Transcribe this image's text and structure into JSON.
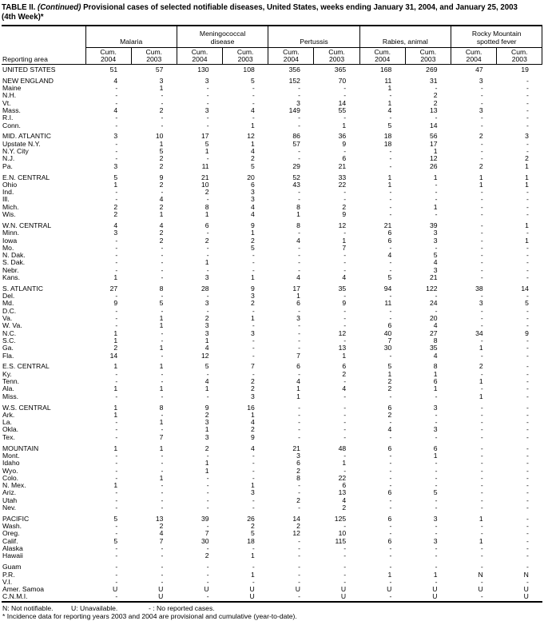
{
  "title": {
    "prefix": "TABLE II. ",
    "continued": "(Continued)",
    "line1_rest": " Provisional cases of selected notifiable diseases, United States, weeks ending January 31, 2004, and January 25, 2003",
    "line2": "(4th Week)*"
  },
  "header": {
    "reporting_area": "Reporting area",
    "cum_label": "Cum.",
    "years": [
      "2004",
      "2003"
    ],
    "groups": [
      {
        "id": "malaria",
        "lines": [
          "Malaria"
        ]
      },
      {
        "id": "meningococcal-disease",
        "lines": [
          "Meningococcal",
          "disease"
        ]
      },
      {
        "id": "pertussis",
        "lines": [
          "Pertussis"
        ]
      },
      {
        "id": "rabies-animal",
        "lines": [
          "Rabies, animal"
        ]
      },
      {
        "id": "rocky-mountain-spotted-fever",
        "lines": [
          "Rocky Mountain",
          "spotted fever"
        ]
      }
    ]
  },
  "sections": [
    {
      "rows": [
        {
          "area": "UNITED STATES",
          "values": [
            "51",
            "57",
            "130",
            "108",
            "356",
            "365",
            "168",
            "269",
            "47",
            "19"
          ]
        }
      ]
    },
    {
      "rows": [
        {
          "area": "NEW ENGLAND",
          "values": [
            "4",
            "3",
            "3",
            "5",
            "152",
            "70",
            "11",
            "31",
            "3",
            "-"
          ]
        },
        {
          "area": "Maine",
          "values": [
            "-",
            "1",
            "-",
            "-",
            "-",
            "-",
            "1",
            "-",
            "-",
            "-"
          ]
        },
        {
          "area": "N.H.",
          "values": [
            "-",
            "-",
            "-",
            "-",
            "-",
            "-",
            "-",
            "2",
            "-",
            "-"
          ]
        },
        {
          "area": "Vt.",
          "values": [
            "-",
            "-",
            "-",
            "-",
            "3",
            "14",
            "1",
            "2",
            "-",
            "-"
          ]
        },
        {
          "area": "Mass.",
          "values": [
            "4",
            "2",
            "3",
            "4",
            "149",
            "55",
            "4",
            "13",
            "3",
            "-"
          ]
        },
        {
          "area": "R.I.",
          "values": [
            "-",
            "-",
            "-",
            "-",
            "-",
            "-",
            "-",
            "-",
            "-",
            "-"
          ]
        },
        {
          "area": "Conn.",
          "values": [
            "-",
            "-",
            "-",
            "1",
            "-",
            "1",
            "5",
            "14",
            "-",
            "-"
          ]
        }
      ]
    },
    {
      "rows": [
        {
          "area": "MID. ATLANTIC",
          "values": [
            "3",
            "10",
            "17",
            "12",
            "86",
            "36",
            "18",
            "56",
            "2",
            "3"
          ]
        },
        {
          "area": "Upstate N.Y.",
          "values": [
            "-",
            "1",
            "5",
            "1",
            "57",
            "9",
            "18",
            "17",
            "-",
            "-"
          ]
        },
        {
          "area": "N.Y. City",
          "values": [
            "-",
            "5",
            "1",
            "4",
            "-",
            "-",
            "-",
            "1",
            "-",
            "-"
          ]
        },
        {
          "area": "N.J.",
          "values": [
            "-",
            "2",
            "-",
            "2",
            "-",
            "6",
            "-",
            "12",
            "-",
            "2"
          ]
        },
        {
          "area": "Pa.",
          "values": [
            "3",
            "2",
            "11",
            "5",
            "29",
            "21",
            "-",
            "26",
            "2",
            "1"
          ]
        }
      ]
    },
    {
      "rows": [
        {
          "area": "E.N. CENTRAL",
          "values": [
            "5",
            "9",
            "21",
            "20",
            "52",
            "33",
            "1",
            "1",
            "1",
            "1"
          ]
        },
        {
          "area": "Ohio",
          "values": [
            "1",
            "2",
            "10",
            "6",
            "43",
            "22",
            "1",
            "-",
            "1",
            "1"
          ]
        },
        {
          "area": "Ind.",
          "values": [
            "-",
            "-",
            "2",
            "3",
            "-",
            "-",
            "-",
            "-",
            "-",
            "-"
          ]
        },
        {
          "area": "Ill.",
          "values": [
            "-",
            "4",
            "-",
            "3",
            "-",
            "-",
            "-",
            "-",
            "-",
            "-"
          ]
        },
        {
          "area": "Mich.",
          "values": [
            "2",
            "2",
            "8",
            "4",
            "8",
            "2",
            "-",
            "1",
            "-",
            "-"
          ]
        },
        {
          "area": "Wis.",
          "values": [
            "2",
            "1",
            "1",
            "4",
            "1",
            "9",
            "-",
            "-",
            "-",
            "-"
          ]
        }
      ]
    },
    {
      "rows": [
        {
          "area": "W.N. CENTRAL",
          "values": [
            "4",
            "4",
            "6",
            "9",
            "8",
            "12",
            "21",
            "39",
            "-",
            "1"
          ]
        },
        {
          "area": "Minn.",
          "values": [
            "3",
            "2",
            "-",
            "1",
            "-",
            "-",
            "6",
            "3",
            "-",
            "-"
          ]
        },
        {
          "area": "Iowa",
          "values": [
            "-",
            "2",
            "2",
            "2",
            "4",
            "1",
            "6",
            "3",
            "-",
            "1"
          ]
        },
        {
          "area": "Mo.",
          "values": [
            "-",
            "-",
            "-",
            "5",
            "-",
            "7",
            "-",
            "-",
            "-",
            "-"
          ]
        },
        {
          "area": "N. Dak.",
          "values": [
            "-",
            "-",
            "-",
            "-",
            "-",
            "-",
            "4",
            "5",
            "-",
            "-"
          ]
        },
        {
          "area": "S. Dak.",
          "values": [
            "-",
            "-",
            "1",
            "-",
            "-",
            "-",
            "-",
            "4",
            "-",
            "-"
          ]
        },
        {
          "area": "Nebr.",
          "values": [
            "-",
            "-",
            "-",
            "-",
            "-",
            "-",
            "-",
            "3",
            "-",
            "-"
          ]
        },
        {
          "area": "Kans.",
          "values": [
            "1",
            "-",
            "3",
            "1",
            "4",
            "4",
            "5",
            "21",
            "-",
            "-"
          ]
        }
      ]
    },
    {
      "rows": [
        {
          "area": "S. ATLANTIC",
          "values": [
            "27",
            "8",
            "28",
            "9",
            "17",
            "35",
            "94",
            "122",
            "38",
            "14"
          ]
        },
        {
          "area": "Del.",
          "values": [
            "-",
            "-",
            "-",
            "3",
            "1",
            "-",
            "-",
            "-",
            "-",
            "-"
          ]
        },
        {
          "area": "Md.",
          "values": [
            "9",
            "5",
            "3",
            "2",
            "6",
            "9",
            "11",
            "24",
            "3",
            "5"
          ]
        },
        {
          "area": "D.C.",
          "values": [
            "-",
            "-",
            "-",
            "-",
            "-",
            "-",
            "-",
            "-",
            "-",
            "-"
          ]
        },
        {
          "area": "Va.",
          "values": [
            "-",
            "1",
            "2",
            "1",
            "3",
            "-",
            "-",
            "20",
            "-",
            "-"
          ]
        },
        {
          "area": "W. Va.",
          "values": [
            "-",
            "1",
            "3",
            "-",
            "-",
            "-",
            "6",
            "4",
            "-",
            "-"
          ]
        },
        {
          "area": "N.C.",
          "values": [
            "1",
            "-",
            "3",
            "3",
            "-",
            "12",
            "40",
            "27",
            "34",
            "9"
          ]
        },
        {
          "area": "S.C.",
          "values": [
            "1",
            "-",
            "1",
            "-",
            "-",
            "-",
            "7",
            "8",
            "-",
            "-"
          ]
        },
        {
          "area": "Ga.",
          "values": [
            "2",
            "1",
            "4",
            "-",
            "-",
            "13",
            "30",
            "35",
            "1",
            "-"
          ]
        },
        {
          "area": "Fla.",
          "values": [
            "14",
            "-",
            "12",
            "-",
            "7",
            "1",
            "-",
            "4",
            "-",
            "-"
          ]
        }
      ]
    },
    {
      "rows": [
        {
          "area": "E.S. CENTRAL",
          "values": [
            "1",
            "1",
            "5",
            "7",
            "6",
            "6",
            "5",
            "8",
            "2",
            "-"
          ]
        },
        {
          "area": "Ky.",
          "values": [
            "-",
            "-",
            "-",
            "-",
            "-",
            "2",
            "1",
            "1",
            "-",
            "-"
          ]
        },
        {
          "area": "Tenn.",
          "values": [
            "-",
            "-",
            "4",
            "2",
            "4",
            "-",
            "2",
            "6",
            "1",
            "-"
          ]
        },
        {
          "area": "Ala.",
          "values": [
            "1",
            "1",
            "1",
            "2",
            "1",
            "4",
            "2",
            "1",
            "-",
            "-"
          ]
        },
        {
          "area": "Miss.",
          "values": [
            "-",
            "-",
            "-",
            "3",
            "1",
            "-",
            "-",
            "-",
            "1",
            "-"
          ]
        }
      ]
    },
    {
      "rows": [
        {
          "area": "W.S. CENTRAL",
          "values": [
            "1",
            "8",
            "9",
            "16",
            "-",
            "-",
            "6",
            "3",
            "-",
            "-"
          ]
        },
        {
          "area": "Ark.",
          "values": [
            "1",
            "-",
            "2",
            "1",
            "-",
            "-",
            "2",
            "-",
            "-",
            "-"
          ]
        },
        {
          "area": "La.",
          "values": [
            "-",
            "1",
            "3",
            "4",
            "-",
            "-",
            "-",
            "-",
            "-",
            "-"
          ]
        },
        {
          "area": "Okla.",
          "values": [
            "-",
            "-",
            "1",
            "2",
            "-",
            "-",
            "4",
            "3",
            "-",
            "-"
          ]
        },
        {
          "area": "Tex.",
          "values": [
            "-",
            "7",
            "3",
            "9",
            "-",
            "-",
            "-",
            "-",
            "-",
            "-"
          ]
        }
      ]
    },
    {
      "rows": [
        {
          "area": "MOUNTAIN",
          "values": [
            "1",
            "1",
            "2",
            "4",
            "21",
            "48",
            "6",
            "6",
            "-",
            "-"
          ]
        },
        {
          "area": "Mont.",
          "values": [
            "-",
            "-",
            "-",
            "-",
            "3",
            "-",
            "-",
            "1",
            "-",
            "-"
          ]
        },
        {
          "area": "Idaho",
          "values": [
            "-",
            "-",
            "1",
            "-",
            "6",
            "1",
            "-",
            "-",
            "-",
            "-"
          ]
        },
        {
          "area": "Wyo.",
          "values": [
            "-",
            "-",
            "1",
            "-",
            "2",
            "-",
            "-",
            "-",
            "-",
            "-"
          ]
        },
        {
          "area": "Colo.",
          "values": [
            "-",
            "1",
            "-",
            "-",
            "8",
            "22",
            "-",
            "-",
            "-",
            "-"
          ]
        },
        {
          "area": "N. Mex.",
          "values": [
            "1",
            "-",
            "-",
            "1",
            "-",
            "6",
            "-",
            "-",
            "-",
            "-"
          ]
        },
        {
          "area": "Ariz.",
          "values": [
            "-",
            "-",
            "-",
            "3",
            "-",
            "13",
            "6",
            "5",
            "-",
            "-"
          ]
        },
        {
          "area": "Utah",
          "values": [
            "-",
            "-",
            "-",
            "-",
            "2",
            "4",
            "-",
            "-",
            "-",
            "-"
          ]
        },
        {
          "area": "Nev.",
          "values": [
            "-",
            "-",
            "-",
            "-",
            "-",
            "2",
            "-",
            "-",
            "-",
            "-"
          ]
        }
      ]
    },
    {
      "rows": [
        {
          "area": "PACIFIC",
          "values": [
            "5",
            "13",
            "39",
            "26",
            "14",
            "125",
            "6",
            "3",
            "1",
            "-"
          ]
        },
        {
          "area": "Wash.",
          "values": [
            "-",
            "2",
            "-",
            "2",
            "2",
            "-",
            "-",
            "-",
            "-",
            "-"
          ]
        },
        {
          "area": "Oreg.",
          "values": [
            "-",
            "4",
            "7",
            "5",
            "12",
            "10",
            "-",
            "-",
            "-",
            "-"
          ]
        },
        {
          "area": "Calif.",
          "values": [
            "5",
            "7",
            "30",
            "18",
            "-",
            "115",
            "6",
            "3",
            "1",
            "-"
          ]
        },
        {
          "area": "Alaska",
          "values": [
            "-",
            "-",
            "-",
            "-",
            "-",
            "-",
            "-",
            "-",
            "-",
            "-"
          ]
        },
        {
          "area": "Hawaii",
          "values": [
            "-",
            "-",
            "2",
            "1",
            "-",
            "-",
            "-",
            "-",
            "-",
            "-"
          ]
        }
      ]
    },
    {
      "rows": [
        {
          "area": "Guam",
          "values": [
            "-",
            "-",
            "-",
            "-",
            "-",
            "-",
            "-",
            "-",
            "-",
            "-"
          ]
        },
        {
          "area": "P.R.",
          "values": [
            "-",
            "-",
            "-",
            "1",
            "-",
            "-",
            "1",
            "1",
            "N",
            "N"
          ]
        },
        {
          "area": "V.I.",
          "values": [
            "-",
            "-",
            "-",
            "-",
            "-",
            "-",
            "-",
            "-",
            "-",
            "-"
          ]
        },
        {
          "area": "Amer. Samoa",
          "values": [
            "U",
            "U",
            "U",
            "U",
            "U",
            "U",
            "U",
            "U",
            "U",
            "U"
          ]
        },
        {
          "area": "C.N.M.I.",
          "values": [
            "-",
            "U",
            "-",
            "U",
            "-",
            "U",
            "-",
            "U",
            "-",
            "U"
          ]
        }
      ]
    }
  ],
  "footnotes": {
    "n": "N: Not notifiable.",
    "u": "U: Unavailable.",
    "dash": "- : No reported cases.",
    "incidence": "* Incidence data for reporting years 2003 and 2004 are provisional and cumulative (year-to-date)."
  }
}
